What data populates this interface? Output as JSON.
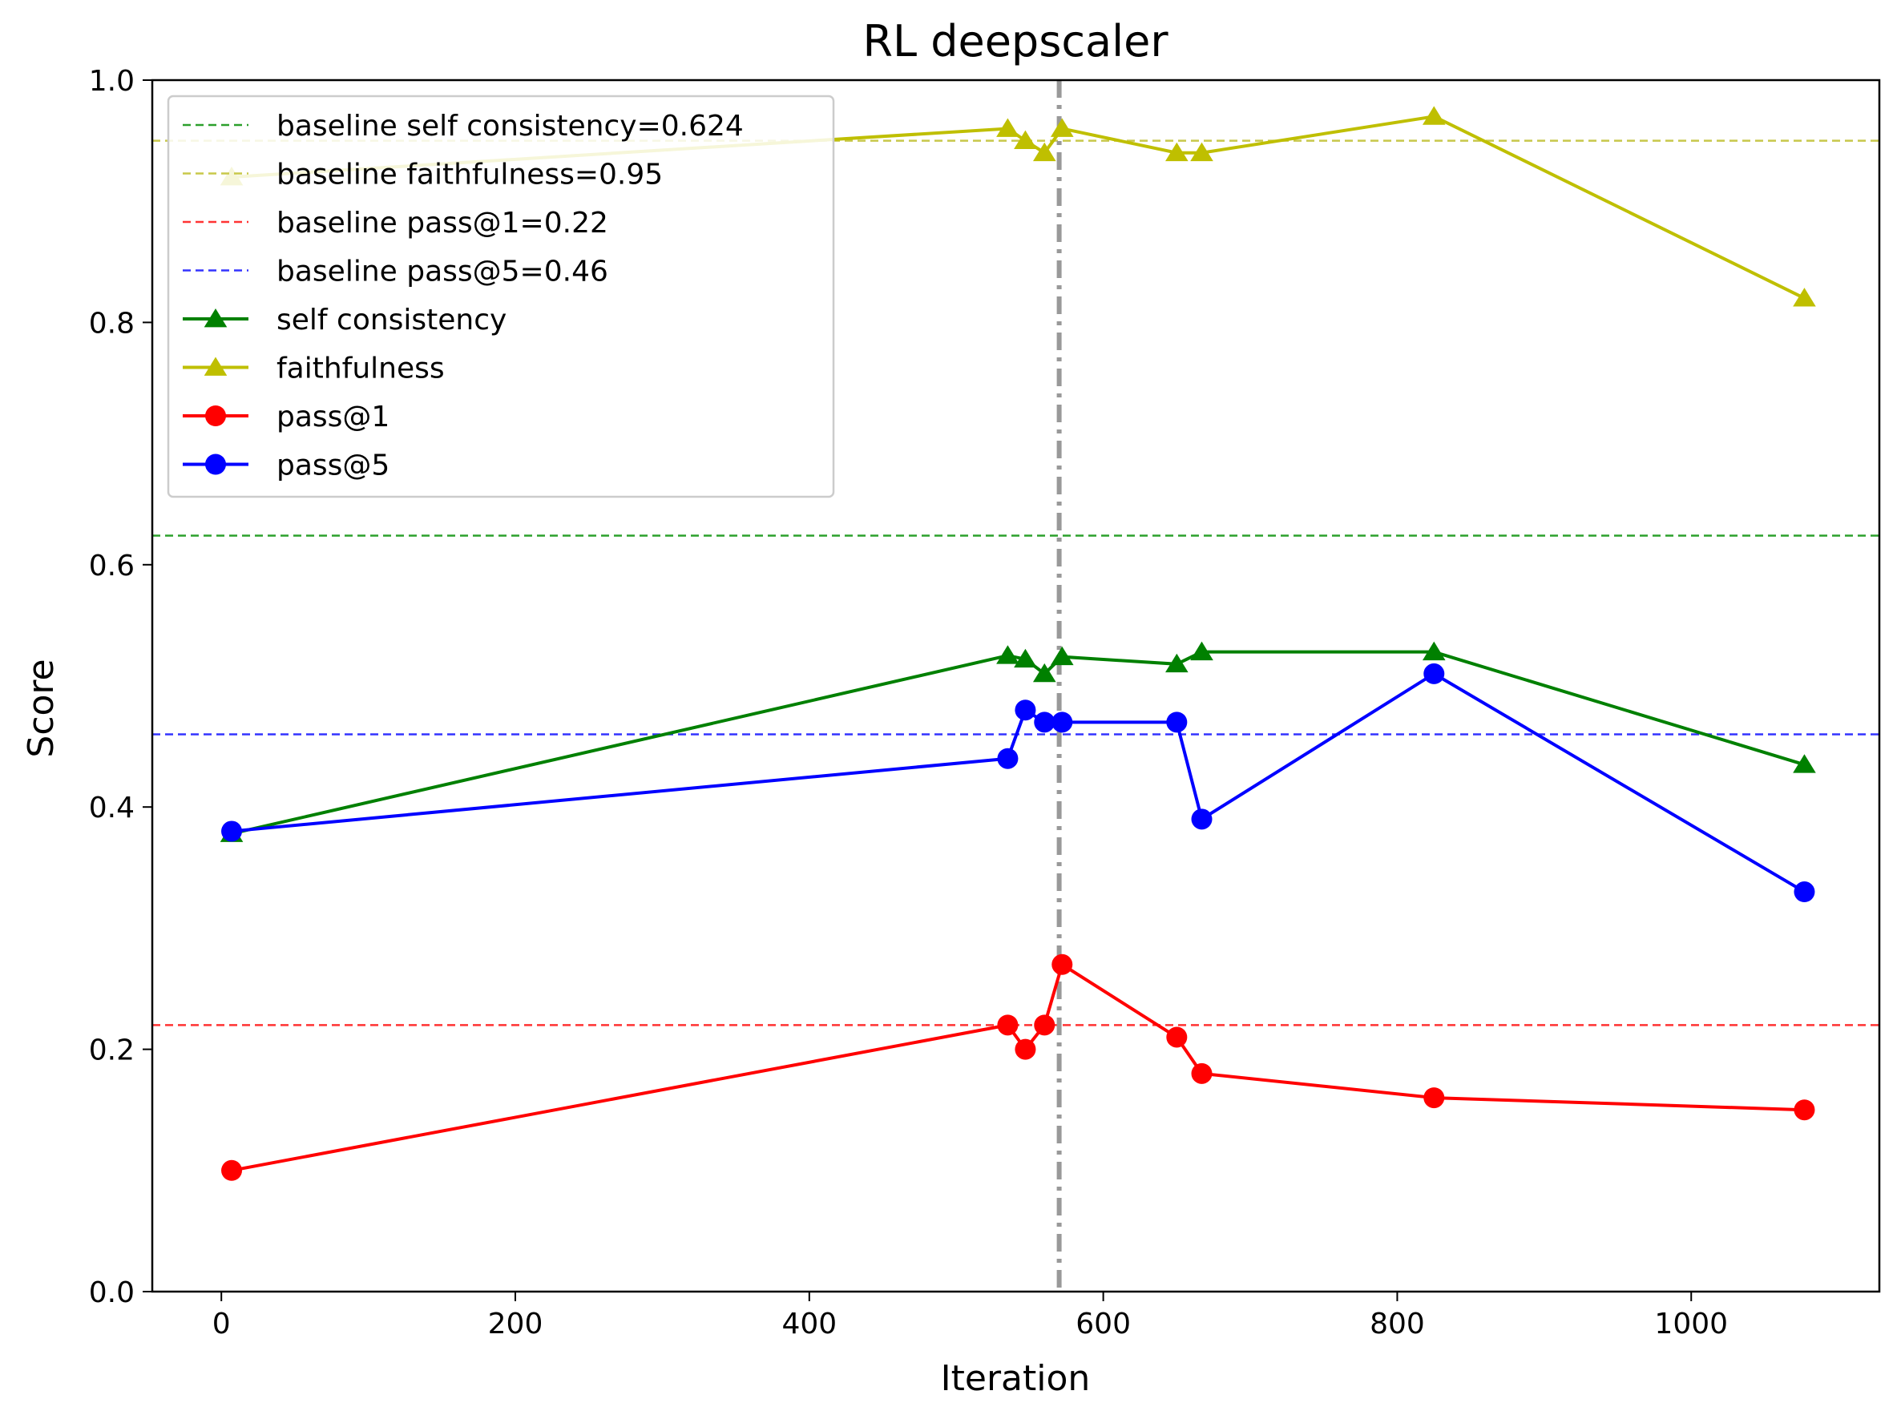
{
  "chart_data": {
    "type": "line",
    "title": "RL deepscaler",
    "xlabel": "Iteration",
    "ylabel": "Score",
    "xlim": [
      -47,
      1128
    ],
    "ylim": [
      0,
      1.0
    ],
    "xticks": [
      0,
      200,
      400,
      600,
      800,
      1000
    ],
    "xtick_labels": [
      "0",
      "200",
      "400",
      "600",
      "800",
      "1000"
    ],
    "yticks": [
      0,
      0.2,
      0.4,
      0.6,
      0.8,
      1.0
    ],
    "ytick_labels": [
      "0.0",
      "0.2",
      "0.4",
      "0.6",
      "0.8",
      "1.0"
    ],
    "grid": false,
    "legend_position": "top-left",
    "vertical_line": {
      "x": 570,
      "color": "#999999",
      "style": "dash-dot"
    },
    "baselines": [
      {
        "name": "baseline self consistency=0.624",
        "value": 0.624,
        "color": "#2ca02c"
      },
      {
        "name": "baseline faithfulness=0.95",
        "value": 0.95,
        "color": "#c8c84a"
      },
      {
        "name": "baseline pass@1=0.22",
        "value": 0.22,
        "color": "#ff3333"
      },
      {
        "name": "baseline pass@5=0.46",
        "value": 0.46,
        "color": "#3333ff"
      }
    ],
    "series": [
      {
        "name": "self consistency",
        "color": "#008000",
        "marker": "triangle",
        "x": [
          7,
          535,
          547,
          560,
          572,
          650,
          667,
          825,
          1077
        ],
        "values": [
          0.378,
          0.525,
          0.522,
          0.51,
          0.524,
          0.518,
          0.528,
          0.528,
          0.435
        ]
      },
      {
        "name": "faithfulness",
        "color": "#bfbf00",
        "marker": "triangle",
        "x": [
          7,
          535,
          547,
          560,
          572,
          650,
          667,
          825,
          1077
        ],
        "values": [
          0.92,
          0.96,
          0.95,
          0.94,
          0.96,
          0.94,
          0.94,
          0.97,
          0.82
        ]
      },
      {
        "name": "pass@1",
        "color": "#ff0000",
        "marker": "circle",
        "x": [
          7,
          535,
          547,
          560,
          572,
          650,
          667,
          825,
          1077
        ],
        "values": [
          0.1,
          0.22,
          0.2,
          0.22,
          0.27,
          0.21,
          0.18,
          0.16,
          0.15
        ]
      },
      {
        "name": "pass@5",
        "color": "#0000ff",
        "marker": "circle",
        "x": [
          7,
          535,
          547,
          560,
          572,
          650,
          667,
          825,
          1077
        ],
        "values": [
          0.38,
          0.44,
          0.48,
          0.47,
          0.47,
          0.47,
          0.39,
          0.51,
          0.33
        ]
      }
    ]
  }
}
